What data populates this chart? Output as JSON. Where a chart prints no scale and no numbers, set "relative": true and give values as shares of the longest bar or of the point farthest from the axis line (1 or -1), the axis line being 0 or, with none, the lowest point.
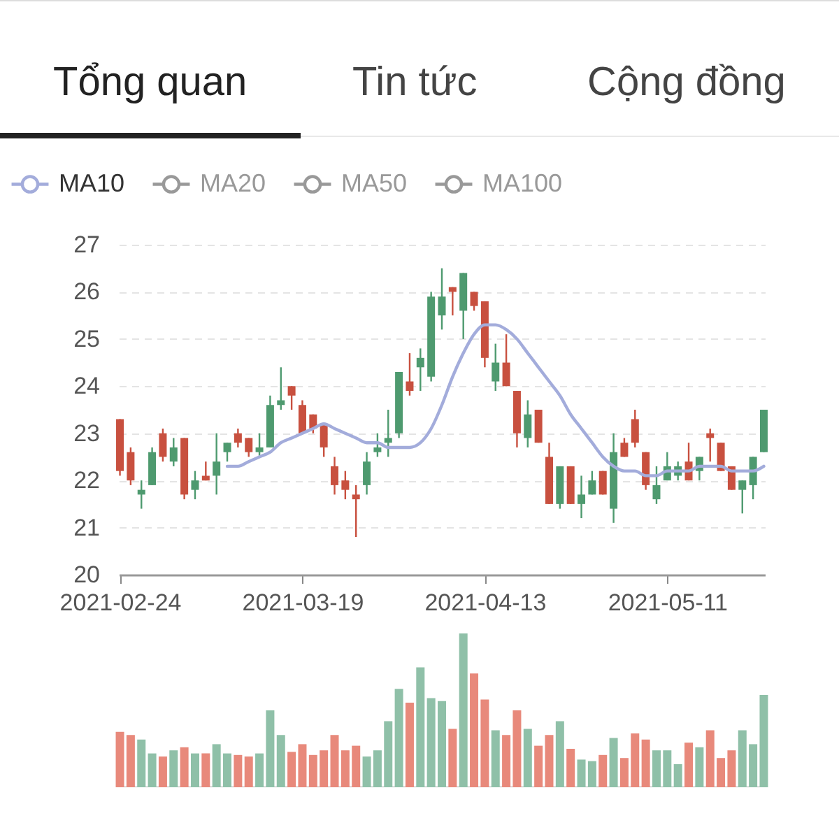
{
  "chart_data": [
    {
      "type": "candlestick",
      "annotations": [
        "Tổng quan",
        "Tin tức",
        "Cộng đồng"
      ],
      "categories": [
        "2021-02-24",
        null,
        null,
        null,
        null,
        null,
        null,
        null,
        null,
        null,
        null,
        null,
        null,
        null,
        null,
        null,
        null,
        "2021-03-19",
        null,
        null,
        null,
        null,
        null,
        null,
        null,
        null,
        null,
        null,
        null,
        null,
        null,
        null,
        null,
        null,
        "2021-04-13",
        null,
        null,
        null,
        null,
        null,
        null,
        null,
        null,
        null,
        null,
        null,
        null,
        null,
        null,
        null,
        null,
        "2021-05-11",
        null,
        null,
        null,
        null,
        null,
        null,
        null,
        null,
        null
      ],
      "ohlc": [
        [
          23.3,
          23.3,
          22.1,
          22.2
        ],
        [
          22.6,
          22.7,
          21.9,
          22.0
        ],
        [
          21.7,
          22.0,
          21.4,
          21.8
        ],
        [
          21.9,
          22.7,
          21.9,
          22.6
        ],
        [
          23.0,
          23.1,
          22.4,
          22.5
        ],
        [
          22.4,
          22.9,
          22.3,
          22.7
        ],
        [
          22.9,
          22.9,
          21.6,
          21.7
        ],
        [
          21.8,
          22.2,
          21.6,
          22.0
        ],
        [
          22.1,
          22.4,
          22.0,
          22.0
        ],
        [
          22.1,
          23.0,
          21.7,
          22.4
        ],
        [
          22.6,
          22.8,
          22.4,
          22.8
        ],
        [
          23.0,
          23.1,
          22.7,
          22.8
        ],
        [
          22.9,
          22.9,
          22.5,
          22.6
        ],
        [
          22.6,
          23.0,
          22.5,
          22.7
        ],
        [
          22.7,
          23.8,
          22.7,
          23.6
        ],
        [
          23.6,
          24.4,
          23.5,
          23.7
        ],
        [
          24.0,
          24.0,
          23.5,
          23.8
        ],
        [
          23.6,
          23.7,
          23.0,
          23.0
        ],
        [
          23.4,
          23.4,
          23.0,
          23.1
        ],
        [
          23.2,
          23.2,
          22.5,
          22.7
        ],
        [
          22.3,
          22.5,
          21.7,
          21.9
        ],
        [
          22.0,
          22.2,
          21.6,
          21.8
        ],
        [
          21.7,
          21.9,
          20.8,
          21.6
        ],
        [
          21.9,
          22.6,
          21.7,
          22.4
        ],
        [
          22.6,
          23.0,
          22.5,
          22.7
        ],
        [
          22.8,
          23.5,
          22.5,
          22.9
        ],
        [
          23.0,
          24.3,
          22.9,
          24.3
        ],
        [
          24.1,
          24.7,
          23.8,
          23.9
        ],
        [
          24.4,
          24.8,
          23.9,
          24.6
        ],
        [
          24.2,
          26.0,
          24.1,
          25.9
        ],
        [
          25.5,
          26.5,
          25.2,
          25.9
        ],
        [
          26.1,
          26.1,
          25.5,
          26.0
        ],
        [
          25.6,
          26.4,
          25.0,
          26.4
        ],
        [
          26.0,
          26.0,
          25.6,
          25.7
        ],
        [
          25.8,
          25.8,
          24.4,
          24.6
        ],
        [
          24.1,
          24.9,
          23.9,
          24.5
        ],
        [
          24.5,
          25.1,
          24.0,
          24.0
        ],
        [
          23.9,
          23.9,
          22.7,
          23.0
        ],
        [
          22.9,
          23.7,
          22.7,
          23.4
        ],
        [
          23.5,
          23.5,
          22.8,
          22.8
        ],
        [
          22.5,
          22.8,
          21.5,
          21.5
        ],
        [
          21.5,
          22.3,
          21.4,
          22.3
        ],
        [
          22.3,
          22.3,
          21.5,
          21.5
        ],
        [
          21.5,
          22.1,
          21.2,
          21.7
        ],
        [
          21.7,
          22.2,
          21.7,
          22.0
        ],
        [
          22.2,
          22.2,
          21.7,
          21.7
        ],
        [
          21.4,
          23.0,
          21.1,
          22.6
        ],
        [
          22.8,
          22.9,
          22.5,
          22.5
        ],
        [
          23.3,
          23.5,
          22.7,
          22.8
        ],
        [
          22.6,
          22.6,
          21.8,
          21.9
        ],
        [
          21.6,
          22.3,
          21.5,
          21.9
        ],
        [
          22.0,
          22.6,
          22.0,
          22.3
        ],
        [
          22.1,
          22.4,
          22.0,
          22.3
        ],
        [
          22.4,
          22.8,
          22.0,
          22.0
        ],
        [
          22.2,
          22.5,
          22.0,
          22.5
        ],
        [
          23.0,
          23.1,
          22.4,
          22.9
        ],
        [
          22.8,
          22.8,
          22.2,
          22.2
        ],
        [
          22.3,
          22.3,
          21.8,
          21.8
        ],
        [
          21.8,
          22.0,
          21.3,
          22.0
        ],
        [
          21.9,
          22.5,
          21.6,
          22.5
        ],
        [
          22.6,
          23.5,
          22.6,
          23.5
        ]
      ],
      "colors": [
        "#c8503f",
        "#c8503f",
        "#4e9a6f",
        "#4e9a6f",
        "#c8503f",
        "#4e9a6f",
        "#c8503f",
        "#4e9a6f",
        "#c8503f",
        "#4e9a6f",
        "#4e9a6f",
        "#c8503f",
        "#c8503f",
        "#4e9a6f",
        "#4e9a6f",
        "#4e9a6f",
        "#c8503f",
        "#c8503f",
        "#c8503f",
        "#c8503f",
        "#c8503f",
        "#c8503f",
        "#c8503f",
        "#4e9a6f",
        "#4e9a6f",
        "#4e9a6f",
        "#4e9a6f",
        "#c8503f",
        "#4e9a6f",
        "#4e9a6f",
        "#4e9a6f",
        "#c8503f",
        "#4e9a6f",
        "#c8503f",
        "#c8503f",
        "#4e9a6f",
        "#c8503f",
        "#c8503f",
        "#4e9a6f",
        "#c8503f",
        "#c8503f",
        "#4e9a6f",
        "#c8503f",
        "#4e9a6f",
        "#4e9a6f",
        "#c8503f",
        "#4e9a6f",
        "#c8503f",
        "#c8503f",
        "#c8503f",
        "#4e9a6f",
        "#4e9a6f",
        "#4e9a6f",
        "#c8503f",
        "#4e9a6f",
        "#c8503f",
        "#c8503f",
        "#c8503f",
        "#4e9a6f",
        "#4e9a6f",
        "#4e9a6f"
      ],
      "series": [
        {
          "name": "MA10",
          "type": "line",
          "color": "#a3acdb",
          "values": [
            null,
            null,
            null,
            null,
            null,
            null,
            null,
            null,
            null,
            null,
            22.3,
            22.3,
            22.4,
            22.5,
            22.6,
            22.8,
            22.9,
            23.0,
            23.1,
            23.2,
            23.1,
            23.0,
            22.9,
            22.8,
            22.8,
            22.7,
            22.7,
            22.7,
            22.8,
            23.1,
            23.6,
            24.2,
            24.7,
            25.1,
            25.3,
            25.3,
            25.2,
            25.0,
            24.7,
            24.4,
            24.1,
            23.8,
            23.4,
            23.1,
            22.8,
            22.5,
            22.3,
            22.2,
            22.2,
            22.1,
            22.1,
            22.2,
            22.2,
            22.2,
            22.3,
            22.3,
            22.3,
            22.2,
            22.2,
            22.2,
            22.3
          ]
        },
        {
          "name": "MA20",
          "type": "line",
          "color": "#999999",
          "values": [
            null,
            null,
            null,
            null,
            null,
            null,
            null,
            null,
            null,
            null,
            null,
            null,
            null,
            null,
            null,
            null,
            null,
            null,
            null,
            null,
            null,
            null,
            null,
            null,
            null,
            null,
            null,
            null,
            null,
            null,
            null,
            null,
            null,
            null,
            null,
            null,
            null,
            null,
            null,
            null,
            null,
            null,
            null,
            null,
            null,
            null,
            null,
            null,
            null,
            null,
            null,
            null,
            null,
            null,
            null,
            null,
            null,
            null,
            null,
            null,
            null
          ]
        },
        {
          "name": "MA50",
          "type": "line",
          "color": "#999999",
          "values": [
            null,
            null,
            null,
            null,
            null,
            null,
            null,
            null,
            null,
            null,
            null,
            null,
            null,
            null,
            null,
            null,
            null,
            null,
            null,
            null,
            null,
            null,
            null,
            null,
            null,
            null,
            null,
            null,
            null,
            null,
            null,
            null,
            null,
            null,
            null,
            null,
            null,
            null,
            null,
            null,
            null,
            null,
            null,
            null,
            null,
            null,
            null,
            null,
            null,
            null,
            null,
            null,
            null,
            null,
            null,
            null,
            null,
            null,
            null,
            null,
            null
          ]
        },
        {
          "name": "MA100",
          "type": "line",
          "color": "#999999",
          "values": [
            null,
            null,
            null,
            null,
            null,
            null,
            null,
            null,
            null,
            null,
            null,
            null,
            null,
            null,
            null,
            null,
            null,
            null,
            null,
            null,
            null,
            null,
            null,
            null,
            null,
            null,
            null,
            null,
            null,
            null,
            null,
            null,
            null,
            null,
            null,
            null,
            null,
            null,
            null,
            null,
            null,
            null,
            null,
            null,
            null,
            null,
            null,
            null,
            null,
            null,
            null,
            null,
            null,
            null,
            null,
            null,
            null,
            null,
            null,
            null,
            null
          ]
        }
      ],
      "ylim": [
        20,
        27
      ],
      "yticks": [
        20,
        21,
        22,
        23,
        24,
        25,
        26,
        27
      ],
      "grid": "y",
      "legend": "top left"
    },
    {
      "type": "bar",
      "relative": true,
      "tick_labels": false,
      "categories": [
        null,
        null,
        null,
        null,
        null,
        null,
        null,
        null,
        null,
        null,
        null,
        null,
        null,
        null,
        null,
        null,
        null,
        null,
        null,
        null,
        null,
        null,
        null,
        null,
        null,
        null,
        null,
        null,
        null,
        null,
        null,
        null,
        null,
        null,
        null,
        null,
        null,
        null,
        null,
        null,
        null,
        null,
        null,
        null,
        null,
        null,
        null,
        null,
        null,
        null,
        null,
        null,
        null,
        null,
        null,
        null,
        null,
        null,
        null,
        null,
        null
      ],
      "values": [
        0.36,
        0.34,
        0.31,
        0.22,
        0.2,
        0.24,
        0.26,
        0.22,
        0.22,
        0.28,
        0.22,
        0.21,
        0.2,
        0.22,
        0.5,
        0.34,
        0.23,
        0.28,
        0.21,
        0.24,
        0.34,
        0.24,
        0.27,
        0.2,
        0.24,
        0.43,
        0.64,
        0.55,
        0.78,
        0.58,
        0.56,
        0.38,
        1,
        0.74,
        0.57,
        0.37,
        0.34,
        0.5,
        0.38,
        0.27,
        0.34,
        0.43,
        0.25,
        0.18,
        0.17,
        0.21,
        0.32,
        0.19,
        0.35,
        0.31,
        0.24,
        0.24,
        0.15,
        0.29,
        0.26,
        0.37,
        0.19,
        0.24,
        0.37,
        0.28,
        0.6
      ],
      "colors": [
        "#e8897b",
        "#e8897b",
        "#8fc0a8",
        "#8fc0a8",
        "#e8897b",
        "#8fc0a8",
        "#e8897b",
        "#8fc0a8",
        "#e8897b",
        "#8fc0a8",
        "#8fc0a8",
        "#e8897b",
        "#e8897b",
        "#8fc0a8",
        "#8fc0a8",
        "#8fc0a8",
        "#e8897b",
        "#e8897b",
        "#e8897b",
        "#e8897b",
        "#e8897b",
        "#e8897b",
        "#e8897b",
        "#8fc0a8",
        "#8fc0a8",
        "#8fc0a8",
        "#8fc0a8",
        "#e8897b",
        "#8fc0a8",
        "#8fc0a8",
        "#8fc0a8",
        "#e8897b",
        "#8fc0a8",
        "#e8897b",
        "#e8897b",
        "#8fc0a8",
        "#e8897b",
        "#e8897b",
        "#8fc0a8",
        "#e8897b",
        "#e8897b",
        "#8fc0a8",
        "#e8897b",
        "#8fc0a8",
        "#8fc0a8",
        "#e8897b",
        "#8fc0a8",
        "#e8897b",
        "#e8897b",
        "#e8897b",
        "#8fc0a8",
        "#8fc0a8",
        "#8fc0a8",
        "#e8897b",
        "#8fc0a8",
        "#e8897b",
        "#e8897b",
        "#e8897b",
        "#8fc0a8",
        "#8fc0a8",
        "#8fc0a8"
      ]
    }
  ]
}
